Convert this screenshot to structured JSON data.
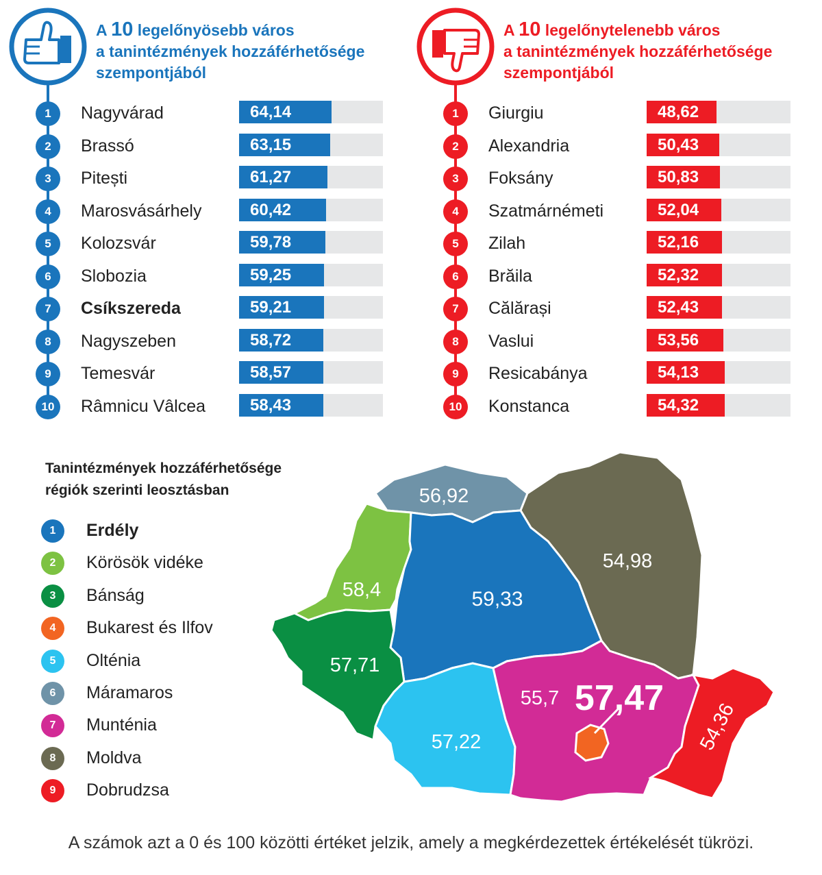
{
  "colors": {
    "blue": "#1a75bc",
    "red": "#ed1c24",
    "track": "#e6e7e8"
  },
  "best": {
    "icon": "thumbs-up-icon",
    "title_pre": "A ",
    "title_num": "10",
    "title_post": " legelőnyösebb város",
    "title_line2": "a tanintézmények hozzáférhetősége",
    "title_line3": "szempontjából",
    "items": [
      {
        "rank": "1",
        "name": "Nagyvárad",
        "value": "64,14",
        "num": 64.14
      },
      {
        "rank": "2",
        "name": "Brassó",
        "value": "63,15",
        "num": 63.15
      },
      {
        "rank": "3",
        "name": "Pitești",
        "value": "61,27",
        "num": 61.27
      },
      {
        "rank": "4",
        "name": "Marosvásárhely",
        "value": "60,42",
        "num": 60.42
      },
      {
        "rank": "5",
        "name": "Kolozsvár",
        "value": "59,78",
        "num": 59.78
      },
      {
        "rank": "6",
        "name": "Slobozia",
        "value": "59,25",
        "num": 59.25
      },
      {
        "rank": "7",
        "name": "Csíkszereda",
        "value": "59,21",
        "num": 59.21,
        "bold": true
      },
      {
        "rank": "8",
        "name": "Nagyszeben",
        "value": "58,72",
        "num": 58.72
      },
      {
        "rank": "9",
        "name": "Temesvár",
        "value": "58,57",
        "num": 58.57
      },
      {
        "rank": "10",
        "name": "Râmnicu Vâlcea",
        "value": "58,43",
        "num": 58.43
      }
    ]
  },
  "worst": {
    "icon": "thumbs-down-icon",
    "title_pre": "A ",
    "title_num": "10",
    "title_post": " legelőnytelenebb város",
    "title_line2": "a tanintézmények hozzáférhetősége",
    "title_line3": "szempontjából",
    "items": [
      {
        "rank": "1",
        "name": "Giurgiu",
        "value": "48,62",
        "num": 48.62
      },
      {
        "rank": "2",
        "name": "Alexandria",
        "value": "50,43",
        "num": 50.43
      },
      {
        "rank": "3",
        "name": "Foksány",
        "value": "50,83",
        "num": 50.83
      },
      {
        "rank": "4",
        "name": "Szatmárnémeti",
        "value": "52,04",
        "num": 52.04
      },
      {
        "rank": "5",
        "name": "Zilah",
        "value": "52,16",
        "num": 52.16
      },
      {
        "rank": "6",
        "name": "Brăila",
        "value": "52,32",
        "num": 52.32
      },
      {
        "rank": "7",
        "name": "Călărași",
        "value": "52,43",
        "num": 52.43
      },
      {
        "rank": "8",
        "name": "Vaslui",
        "value": "53,56",
        "num": 53.56
      },
      {
        "rank": "9",
        "name": "Resicabánya",
        "value": "54,13",
        "num": 54.13
      },
      {
        "rank": "10",
        "name": "Konstanca",
        "value": "54,32",
        "num": 54.32
      }
    ]
  },
  "regions": {
    "title_line1": "Tanintézmények hozzáférhetősége",
    "title_line2": "régiók szerinti leosztásban",
    "items": [
      {
        "num": "1",
        "name": "Erdély",
        "color": "#1a75bc",
        "value": "59,33",
        "bold": true
      },
      {
        "num": "2",
        "name": "Körösök vidéke",
        "color": "#7dc242",
        "value": "58,4"
      },
      {
        "num": "3",
        "name": "Bánság",
        "color": "#0a8f43",
        "value": "57,71"
      },
      {
        "num": "4",
        "name": "Bukarest és Ilfov",
        "color": "#f26522",
        "value": "57,47"
      },
      {
        "num": "5",
        "name": "Olténia",
        "color": "#2cc3f0",
        "value": "57,22"
      },
      {
        "num": "6",
        "name": "Máramaros",
        "color": "#6f93a8",
        "value": "56,92"
      },
      {
        "num": "7",
        "name": "Munténia",
        "color": "#d22b96",
        "value": "55,7"
      },
      {
        "num": "8",
        "name": "Moldva",
        "color": "#6b6a52",
        "value": "54,98"
      },
      {
        "num": "9",
        "name": "Dobrudzsa",
        "color": "#ed1c24",
        "value": "54,36"
      }
    ]
  },
  "chart_data": [
    {
      "type": "bar",
      "title": "A 10 legelőnyösebb város a tanintézmények hozzáférhetősége szempontjából",
      "categories": [
        "Nagyvárad",
        "Brassó",
        "Pitești",
        "Marosvásárhely",
        "Kolozsvár",
        "Slobozia",
        "Csíkszereda",
        "Nagyszeben",
        "Temesvár",
        "Râmnicu Vâlcea"
      ],
      "values": [
        64.14,
        63.15,
        61.27,
        60.42,
        59.78,
        59.25,
        59.21,
        58.72,
        58.57,
        58.43
      ],
      "ylim": [
        0,
        100
      ],
      "orientation": "horizontal"
    },
    {
      "type": "bar",
      "title": "A 10 legelőnytelenebb város a tanintézmények hozzáférhetősége szempontjából",
      "categories": [
        "Giurgiu",
        "Alexandria",
        "Foksány",
        "Szatmárnémeti",
        "Zilah",
        "Brăila",
        "Călărași",
        "Vaslui",
        "Resicabánya",
        "Konstanca"
      ],
      "values": [
        48.62,
        50.43,
        50.83,
        52.04,
        52.16,
        52.32,
        52.43,
        53.56,
        54.13,
        54.32
      ],
      "ylim": [
        0,
        100
      ],
      "orientation": "horizontal"
    },
    {
      "type": "heatmap",
      "title": "Tanintézmények hozzáférhetősége régiók szerinti leosztásban",
      "categories": [
        "Erdély",
        "Körösök vidéke",
        "Bánság",
        "Bukarest és Ilfov",
        "Olténia",
        "Máramaros",
        "Munténia",
        "Moldva",
        "Dobrudzsa"
      ],
      "values": [
        59.33,
        58.4,
        57.71,
        57.47,
        57.22,
        56.92,
        55.7,
        54.98,
        54.36
      ]
    }
  ],
  "footer": "A számok azt a 0 és 100 közötti értéket jelzik, amely a megkérdezettek értékelését tükrözi."
}
